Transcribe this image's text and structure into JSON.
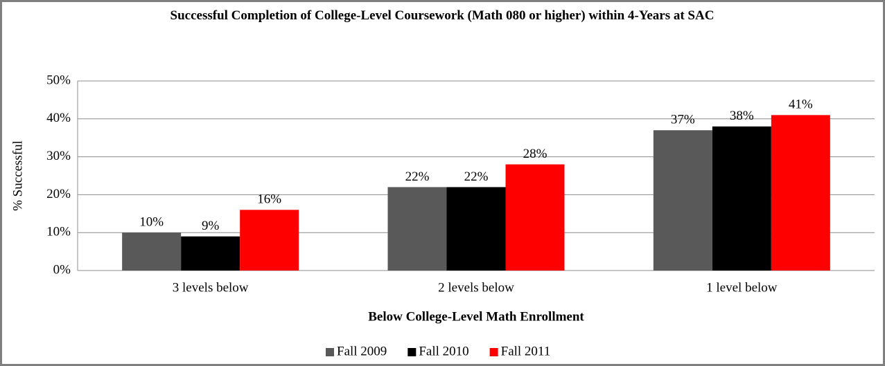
{
  "chart_data": {
    "type": "bar",
    "title": "Successful Completion of College-Level Coursework (Math 080 or higher) within 4-Years at SAC",
    "categories": [
      "3 levels below",
      "2 levels below",
      "1 level below"
    ],
    "series": [
      {
        "name": "Fall 2009",
        "color": "#595959",
        "values": [
          10,
          22,
          37
        ],
        "value_labels": [
          "10%",
          "22%",
          "37%"
        ]
      },
      {
        "name": "Fall 2010",
        "color": "#000000",
        "values": [
          9,
          22,
          38
        ],
        "value_labels": [
          "9%",
          "22%",
          "38%"
        ]
      },
      {
        "name": "Fall 2011",
        "color": "#ff0000",
        "values": [
          16,
          28,
          41
        ],
        "value_labels": [
          "16%",
          "28%",
          "41%"
        ]
      }
    ],
    "x_label": "Below College-Level Math Enrollment",
    "y_label": "% Successful",
    "ylim": [
      0,
      50
    ],
    "yticks": [
      {
        "value": 0,
        "label": "0%"
      },
      {
        "value": 10,
        "label": "10%"
      },
      {
        "value": 20,
        "label": "20%"
      },
      {
        "value": 30,
        "label": "30%"
      },
      {
        "value": 40,
        "label": "40%"
      },
      {
        "value": 50,
        "label": "50%"
      }
    ],
    "grid": true,
    "legend": "bottom"
  }
}
